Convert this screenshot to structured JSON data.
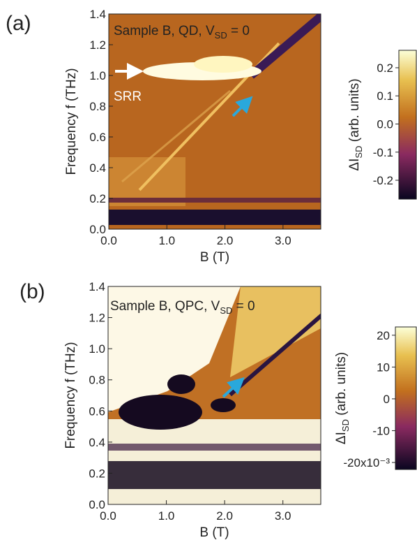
{
  "chart_data": [
    {
      "type": "heatmap",
      "panel_label": "(a)",
      "annotation": {
        "text": "Sample B, QD, V",
        "sub": "SD",
        "tail": " = 0"
      },
      "marker_label": "SRR",
      "x_label": "B (T)",
      "y_label": "Frequency f (THz)",
      "xlim": [
        0,
        3.65
      ],
      "ylim": [
        0,
        1.4
      ],
      "xticks": [
        {
          "value": 0,
          "label": "0.0"
        },
        {
          "value": 1,
          "label": "1.0"
        },
        {
          "value": 2,
          "label": "2.0"
        },
        {
          "value": 3,
          "label": "3.0"
        }
      ],
      "yticks": [
        {
          "value": 0,
          "label": "0.0"
        },
        0.2,
        0.4,
        0.6,
        0.8,
        {
          "value": 1,
          "label": "1.0"
        },
        1.2,
        1.4
      ],
      "colorbar": {
        "label": "ΔI",
        "label_sub": "SD",
        "label_tail": " (arb. units)",
        "lim": [
          -0.267,
          0.262
        ],
        "ticks": [
          0.2,
          0.1,
          {
            "value": 0,
            "label": "0.0"
          },
          -0.1,
          -0.2
        ]
      }
    },
    {
      "type": "heatmap",
      "panel_label": "(b)",
      "annotation": {
        "text": "Sample B, QPC, V",
        "sub": "SD",
        "tail": " = 0"
      },
      "x_label": "B (T)",
      "y_label": "Frequency f (THz)",
      "xlim": [
        0,
        3.65
      ],
      "ylim": [
        0,
        1.4
      ],
      "xticks": [
        {
          "value": 0,
          "label": "0.0"
        },
        {
          "value": 1,
          "label": "1.0"
        },
        {
          "value": 2,
          "label": "2.0"
        },
        {
          "value": 3,
          "label": "3.0"
        }
      ],
      "yticks": [
        {
          "value": 0,
          "label": "0.0"
        },
        0.2,
        0.4,
        0.6,
        0.8,
        {
          "value": 1,
          "label": "1.0"
        },
        1.2,
        1.4
      ],
      "colorbar": {
        "label": "ΔI",
        "label_sub": "SD",
        "label_tail": " (arb. units)",
        "lim": [
          -22.2,
          22.6
        ],
        "ticks": [
          20,
          10,
          0,
          -10,
          {
            "value": -20,
            "label": "-20x10⁻³"
          }
        ]
      }
    }
  ]
}
